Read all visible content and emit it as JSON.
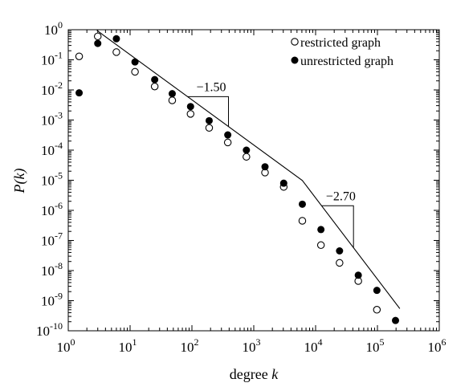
{
  "chart_data": {
    "type": "scatter",
    "title": "",
    "xlabel": "degree k",
    "xlabel_parts": [
      "degree ",
      "k"
    ],
    "ylabel": "P(k)",
    "ylabel_parts": [
      "P(",
      "k",
      ")"
    ],
    "xscale": "log",
    "yscale": "log",
    "xlim": [
      1,
      1000000
    ],
    "ylim": [
      1e-10,
      1
    ],
    "grid": false,
    "legend_position": "top-right",
    "x_tick_labels": [
      {
        "base": "10",
        "exp": "0"
      },
      {
        "base": "10",
        "exp": "1"
      },
      {
        "base": "10",
        "exp": "2"
      },
      {
        "base": "10",
        "exp": "3"
      },
      {
        "base": "10",
        "exp": "4"
      },
      {
        "base": "10",
        "exp": "5"
      },
      {
        "base": "10",
        "exp": "6"
      }
    ],
    "y_tick_labels": [
      {
        "base": "10",
        "exp": "0"
      },
      {
        "base": "10",
        "exp": "-1"
      },
      {
        "base": "10",
        "exp": "-2"
      },
      {
        "base": "10",
        "exp": "-3"
      },
      {
        "base": "10",
        "exp": "-4"
      },
      {
        "base": "10",
        "exp": "-5"
      },
      {
        "base": "10",
        "exp": "-6"
      },
      {
        "base": "10",
        "exp": "-7"
      },
      {
        "base": "10",
        "exp": "-8"
      },
      {
        "base": "10",
        "exp": "-9"
      },
      {
        "base": "10",
        "exp": "-10"
      }
    ],
    "series": [
      {
        "name": "restricted graph",
        "marker": "open-circle",
        "points": [
          [
            1.5,
            0.13
          ],
          [
            3,
            0.6
          ],
          [
            6,
            0.18
          ],
          [
            12,
            0.04
          ],
          [
            25,
            0.013
          ],
          [
            48,
            0.0045
          ],
          [
            95,
            0.0016
          ],
          [
            190,
            0.00055
          ],
          [
            380,
            0.00018
          ],
          [
            760,
            6e-05
          ],
          [
            1520,
            1.8e-05
          ],
          [
            3050,
            6e-06
          ],
          [
            6100,
            4.5e-07
          ],
          [
            12200,
            7e-08
          ],
          [
            24400,
            1.8e-08
          ],
          [
            49000,
            4.5e-09
          ],
          [
            98000,
            5e-10
          ]
        ]
      },
      {
        "name": "unrestricted graph",
        "marker": "filled-circle",
        "points": [
          [
            1.5,
            0.008
          ],
          [
            3,
            0.35
          ],
          [
            6,
            0.5
          ],
          [
            12,
            0.085
          ],
          [
            25,
            0.022
          ],
          [
            48,
            0.0075
          ],
          [
            95,
            0.0028
          ],
          [
            190,
            0.00095
          ],
          [
            380,
            0.00032
          ],
          [
            760,
            0.0001
          ],
          [
            1520,
            2.8e-05
          ],
          [
            3050,
            8e-06
          ],
          [
            6100,
            1.6e-06
          ],
          [
            12200,
            2.3e-07
          ],
          [
            24400,
            4.5e-08
          ],
          [
            49000,
            7e-09
          ],
          [
            98000,
            2.2e-09
          ],
          [
            196000,
            2.2e-10
          ]
        ]
      }
    ],
    "fit_line": {
      "segments": [
        {
          "x_start": 2.9,
          "x_end": 6100,
          "slope": -1.5,
          "y_at_start": 0.95
        },
        {
          "x_start": 6100,
          "x_end": 230000,
          "slope": -2.7
        }
      ]
    },
    "annotations": [
      {
        "text": "−1.50",
        "slope": -1.5,
        "triangle_x": [
          85,
          390
        ]
      },
      {
        "text": "−2.70",
        "slope": -2.7,
        "triangle_x": [
          12500,
          41000
        ]
      }
    ]
  }
}
